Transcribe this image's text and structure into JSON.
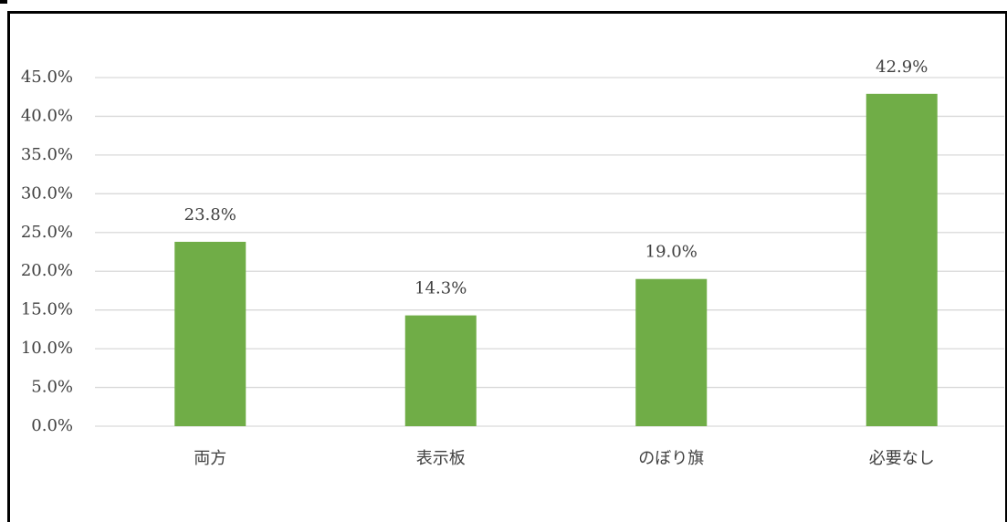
{
  "chart_data": {
    "type": "bar",
    "categories": [
      "両方",
      "表示板",
      "のぼり旗",
      "必要なし"
    ],
    "values": [
      23.8,
      14.3,
      19.0,
      42.9
    ],
    "value_labels": [
      "23.8%",
      "14.3%",
      "19.0%",
      "42.9%"
    ],
    "color": "#70ad47",
    "ylim": [
      0,
      45
    ],
    "yticks": [
      {
        "value": 0,
        "label": "0.0%"
      },
      {
        "value": 5,
        "label": "5.0%"
      },
      {
        "value": 10,
        "label": "10.0%"
      },
      {
        "value": 15,
        "label": "15.0%"
      },
      {
        "value": 20,
        "label": "20.0%"
      },
      {
        "value": 25,
        "label": "25.0%"
      },
      {
        "value": 30,
        "label": "30.0%"
      },
      {
        "value": 35,
        "label": "35.0%"
      },
      {
        "value": 40,
        "label": "40.0%"
      },
      {
        "value": 45,
        "label": "45.0%"
      }
    ],
    "grid": true
  }
}
